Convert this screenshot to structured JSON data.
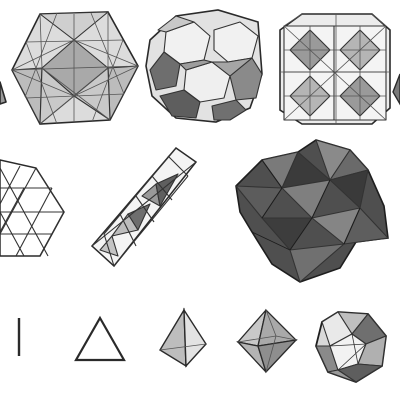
{
  "figure": {
    "background": "#ffffff",
    "palette": {
      "ink": "#2a2a2a",
      "light_face": "#e6e6e6",
      "mid_face": "#bdbdbd",
      "dark_face": "#6f6f6f",
      "darkest_face": "#444444"
    },
    "rows": [
      {
        "row": "top",
        "items": [
          "partial-octahedron-edge-icon",
          "cuboctahedral-cluster-icon",
          "truncated-octahedra-packing-icon",
          "stacked-octahedra-packing-icon",
          "partial-right-shape-icon"
        ]
      },
      {
        "row": "middle",
        "items": [
          "triangular-lattice-icon",
          "tetrahelix-column-icon",
          "dark-tetrahedral-cluster-icon"
        ]
      },
      {
        "row": "bottom",
        "items": [
          "line-segment-icon",
          "triangle-icon",
          "tetrahedron-icon",
          "octahedron-icon",
          "icosahedron-icon"
        ]
      }
    ]
  }
}
